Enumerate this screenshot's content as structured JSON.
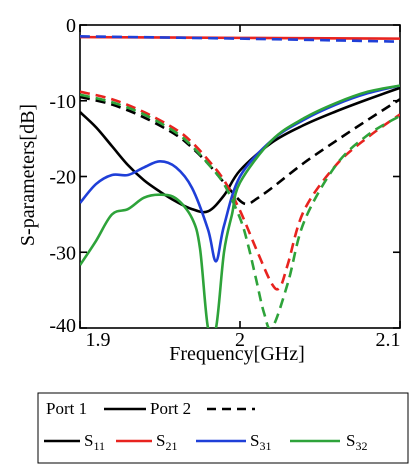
{
  "chart_data": {
    "type": "line",
    "xlabel": "Frequency[GHz]",
    "ylabel": "S-parameters[dB]",
    "xlim": [
      1.9,
      2.1
    ],
    "ylim": [
      -40,
      0
    ],
    "xticks": [
      1.9,
      2.0,
      2.1
    ],
    "xtick_labels": [
      "1.9",
      "2",
      "2.1"
    ],
    "yticks": [
      0,
      -10,
      -20,
      -30,
      -40
    ],
    "ytick_labels": [
      "0",
      "-10",
      "-20",
      "-30",
      "-40"
    ],
    "grid": false,
    "legend_placement": "bottom",
    "legend": {
      "port_items": [
        {
          "label": "Port 1",
          "dash": "solid"
        },
        {
          "label": "Port 2",
          "dash": "dashed"
        }
      ],
      "series_items": [
        {
          "base": "S",
          "sub": "11",
          "color": "#000000"
        },
        {
          "base": "S",
          "sub": "21",
          "color": "#e8231f"
        },
        {
          "base": "S",
          "sub": "31",
          "color": "#1f3fd8"
        },
        {
          "base": "S",
          "sub": "32",
          "color": "#2ea33a"
        }
      ]
    },
    "series": [
      {
        "param": "S11",
        "port": "1",
        "dash": "solid",
        "color": "#000000",
        "x": [
          1.9,
          1.91,
          1.92,
          1.93,
          1.94,
          1.95,
          1.96,
          1.97,
          1.98,
          1.99,
          2.0,
          2.02,
          2.04,
          2.06,
          2.08,
          2.1
        ],
        "y": [
          -11.5,
          -13.5,
          -16,
          -18.5,
          -20.5,
          -22,
          -23.3,
          -24.3,
          -24.6,
          -22.5,
          -19.2,
          -15.5,
          -13.2,
          -11.4,
          -9.8,
          -8.3
        ]
      },
      {
        "param": "S11",
        "port": "2",
        "dash": "dashed",
        "color": "#000000",
        "x": [
          1.9,
          1.92,
          1.94,
          1.96,
          1.97,
          1.98,
          1.99,
          2.0,
          2.005,
          2.01,
          2.02,
          2.04,
          2.06,
          2.08,
          2.1
        ],
        "y": [
          -9.5,
          -10.5,
          -12.2,
          -14.5,
          -16.2,
          -18.3,
          -20.8,
          -23.2,
          -23.6,
          -23.0,
          -21.5,
          -18.2,
          -15.3,
          -12.5,
          -9.8
        ]
      },
      {
        "param": "S21",
        "port": "1",
        "dash": "solid",
        "color": "#e8231f",
        "x": [
          1.9,
          2.0,
          2.1
        ],
        "y": [
          -1.6,
          -1.7,
          -1.8
        ]
      },
      {
        "param": "S21",
        "port": "2",
        "dash": "dashed",
        "color": "#e8231f",
        "x": [
          1.9,
          1.92,
          1.94,
          1.96,
          1.97,
          1.98,
          1.99,
          2.0,
          2.01,
          2.02,
          2.025,
          2.03,
          2.04,
          2.06,
          2.08,
          2.1
        ],
        "y": [
          -8.8,
          -9.8,
          -11.5,
          -13.8,
          -15.5,
          -17.8,
          -20.5,
          -24.5,
          -29.5,
          -34.2,
          -34.6,
          -31.5,
          -24.5,
          -18.5,
          -14.8,
          -11.8
        ]
      },
      {
        "param": "S31",
        "port": "1",
        "dash": "solid",
        "color": "#1f3fd8",
        "x": [
          1.9,
          1.91,
          1.92,
          1.93,
          1.94,
          1.95,
          1.96,
          1.97,
          1.98,
          1.985,
          1.99,
          2.0,
          2.02,
          2.04,
          2.06,
          2.08,
          2.1
        ],
        "y": [
          -23.5,
          -21.0,
          -19.8,
          -19.8,
          -18.8,
          -18.0,
          -18.8,
          -21.5,
          -27.0,
          -31.2,
          -26.5,
          -20.0,
          -15.2,
          -12.5,
          -10.5,
          -9.0,
          -8.0
        ]
      },
      {
        "param": "S31",
        "port": "2",
        "dash": "dashed",
        "color": "#1f3fd8",
        "x": [
          1.9,
          2.0,
          2.1
        ],
        "y": [
          -1.5,
          -1.8,
          -2.2
        ]
      },
      {
        "param": "S32",
        "port": "1",
        "dash": "solid",
        "color": "#2ea33a",
        "x": [
          1.9,
          1.91,
          1.92,
          1.93,
          1.94,
          1.95,
          1.96,
          1.97,
          1.975,
          1.98,
          1.985,
          1.99,
          1.995,
          2.0,
          2.02,
          2.04,
          2.06,
          2.08,
          2.1
        ],
        "y": [
          -31.7,
          -28.5,
          -25.0,
          -24.3,
          -22.8,
          -22.4,
          -22.9,
          -25.5,
          -29.5,
          -40.0,
          -40.0,
          -30.0,
          -25.0,
          -20.8,
          -15.2,
          -12.3,
          -10.3,
          -8.8,
          -8.0
        ]
      },
      {
        "param": "S32",
        "port": "2",
        "dash": "dashed",
        "color": "#2ea33a",
        "x": [
          1.9,
          1.92,
          1.94,
          1.96,
          1.97,
          1.98,
          1.99,
          2.0,
          2.005,
          2.01,
          2.015,
          2.02,
          2.03,
          2.04,
          2.06,
          2.08,
          2.1
        ],
        "y": [
          -9.2,
          -10.2,
          -11.8,
          -14.2,
          -16.0,
          -18.3,
          -21.0,
          -25.5,
          -29.0,
          -33.5,
          -38.0,
          -40.0,
          -34.0,
          -26.0,
          -18.5,
          -14.5,
          -12.0
        ]
      }
    ]
  }
}
